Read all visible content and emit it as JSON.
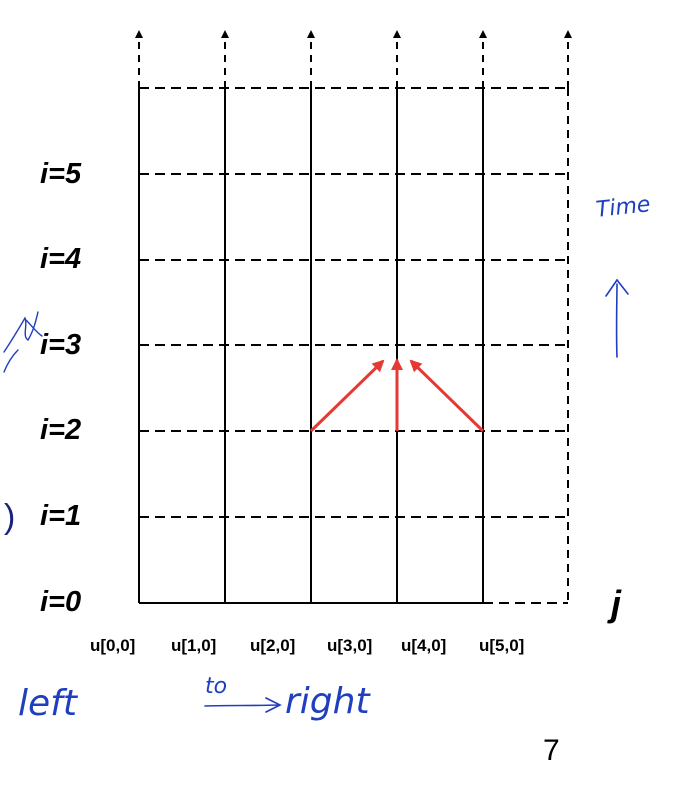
{
  "row_labels": [
    "i=0",
    "i=1",
    "i=2",
    "i=3",
    "i=4",
    "i=5"
  ],
  "column_labels": [
    "u[0,0]",
    "u[1,0]",
    "u[2,0]",
    "u[3,0]",
    "u[4,0]",
    "u[5,0]"
  ],
  "axis_label": "j",
  "page_number": "7",
  "partial_text": ")",
  "handwriting": {
    "time": "Time",
    "left": "left",
    "to": "to",
    "right": "right"
  },
  "colors": {
    "grid": "#000000",
    "stencil_arrows": "#e53935",
    "handwriting": "#1f3fbf",
    "partial_text": "#1a237e"
  }
}
